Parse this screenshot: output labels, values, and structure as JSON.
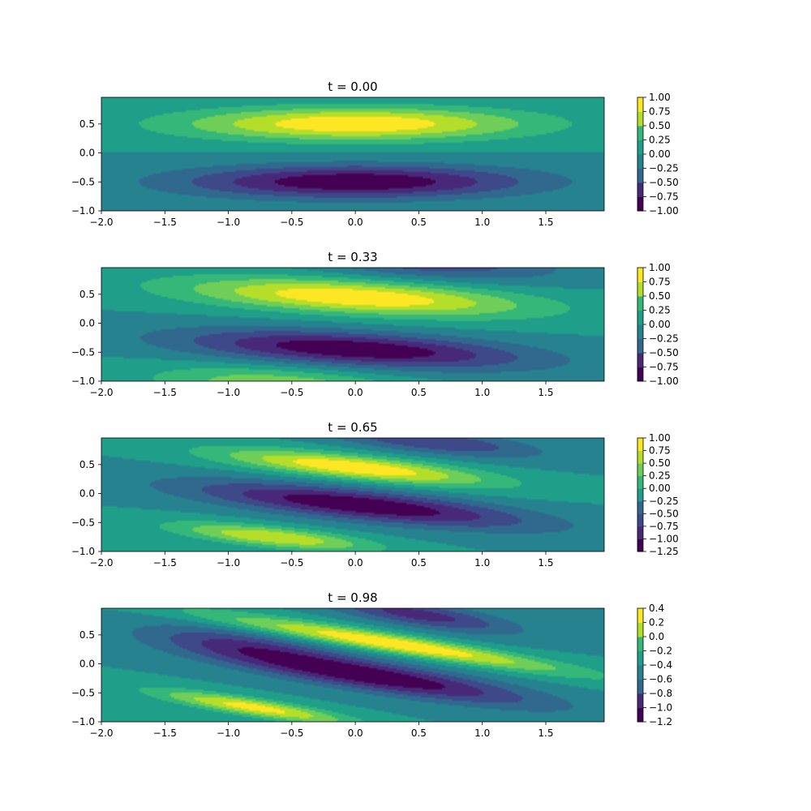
{
  "colormap": [
    "#440154",
    "#482878",
    "#3e4989",
    "#31688e",
    "#26828e",
    "#1f9e89",
    "#35b779",
    "#6ece58",
    "#b5de2b",
    "#fde725"
  ],
  "chart_data": [
    {
      "type": "heatmap",
      "title": "t = 0.00",
      "xlim": [
        -2.0,
        1.96
      ],
      "ylim": [
        -1.0,
        0.96
      ],
      "x_ticks": [
        "-2.0",
        "-1.5",
        "-1.0",
        "-0.5",
        "0.0",
        "0.5",
        "1.0",
        "1.5"
      ],
      "y_ticks": [
        "-1.0",
        "-0.5",
        "0.0",
        "0.5"
      ],
      "colorbar_ticks": [
        "-1.00",
        "-0.75",
        "-0.50",
        "-0.25",
        "0.00",
        "0.25",
        "0.50",
        "0.75",
        "1.00"
      ],
      "field": {
        "lobes": [
          {
            "cx": 0.0,
            "cy": 0.5,
            "sx": 0.95,
            "sy": 0.2,
            "amp": 1.0,
            "angle": 0.0
          },
          {
            "cx": 0.0,
            "cy": -0.5,
            "sx": 0.95,
            "sy": 0.2,
            "amp": -1.0,
            "angle": 0.0
          }
        ]
      }
    },
    {
      "type": "heatmap",
      "title": "t = 0.33",
      "xlim": [
        -2.0,
        1.96
      ],
      "ylim": [
        -1.0,
        0.96
      ],
      "x_ticks": [
        "-2.0",
        "-1.5",
        "-1.0",
        "-0.5",
        "0.0",
        "0.5",
        "1.0",
        "1.5"
      ],
      "y_ticks": [
        "-1.0",
        "-0.5",
        "0.0",
        "0.5"
      ],
      "colorbar_ticks": [
        "-1.00",
        "-0.75",
        "-0.50",
        "-0.25",
        "0.00",
        "0.25",
        "0.50",
        "0.75",
        "1.00"
      ],
      "field": {
        "lobes": [
          {
            "cx": 0.0,
            "cy": 0.45,
            "sx": 0.95,
            "sy": 0.2,
            "amp": 1.0,
            "angle": -0.12
          },
          {
            "cx": 0.0,
            "cy": -0.45,
            "sx": 0.95,
            "sy": 0.2,
            "amp": -1.0,
            "angle": -0.12
          },
          {
            "cx": 0.6,
            "cy": 1.05,
            "sx": 0.7,
            "sy": 0.2,
            "amp": -0.55,
            "angle": -0.12
          },
          {
            "cx": -0.6,
            "cy": -1.05,
            "sx": 0.7,
            "sy": 0.2,
            "amp": 0.55,
            "angle": -0.12
          }
        ]
      }
    },
    {
      "type": "heatmap",
      "title": "t = 0.65",
      "xlim": [
        -2.0,
        1.96
      ],
      "ylim": [
        -1.0,
        0.96
      ],
      "x_ticks": [
        "-2.0",
        "-1.5",
        "-1.0",
        "-0.5",
        "0.0",
        "0.5",
        "1.0",
        "1.5"
      ],
      "y_ticks": [
        "-1.0",
        "-0.5",
        "0.0",
        "0.5"
      ],
      "colorbar_ticks": [
        "-1.25",
        "-1.00",
        "-0.75",
        "-0.50",
        "-0.25",
        "0.00",
        "0.25",
        "0.50",
        "0.75",
        "1.00"
      ],
      "field": {
        "lobes": [
          {
            "cx": 0.0,
            "cy": 0.45,
            "sx": 0.75,
            "sy": 0.14,
            "amp": 1.0,
            "angle": -0.22
          },
          {
            "cx": 0.05,
            "cy": -0.2,
            "sx": 0.95,
            "sy": 0.18,
            "amp": -1.0,
            "angle": -0.22
          },
          {
            "cx": 0.6,
            "cy": 0.9,
            "sx": 0.6,
            "sy": 0.14,
            "amp": -0.6,
            "angle": -0.22
          },
          {
            "cx": -0.65,
            "cy": -0.75,
            "sx": 0.55,
            "sy": 0.12,
            "amp": 0.8,
            "angle": -0.22
          }
        ]
      }
    },
    {
      "type": "heatmap",
      "title": "t = 0.98",
      "xlim": [
        -2.0,
        1.96
      ],
      "ylim": [
        -1.0,
        0.96
      ],
      "x_ticks": [
        "-2.0",
        "-1.5",
        "-1.0",
        "-0.5",
        "0.0",
        "0.5",
        "1.0",
        "1.5"
      ],
      "y_ticks": [
        "-1.0",
        "-0.5",
        "0.0",
        "0.5"
      ],
      "colorbar_ticks": [
        "-1.2",
        "-1.0",
        "-0.8",
        "-0.6",
        "-0.4",
        "-0.2",
        "0.0",
        "0.2",
        "0.4"
      ],
      "field": {
        "lobes": [
          {
            "cx": 0.3,
            "cy": 0.35,
            "sx": 1.0,
            "sy": 0.11,
            "amp": 1.0,
            "angle": -0.33
          },
          {
            "cx": 0.1,
            "cy": -0.2,
            "sx": 0.95,
            "sy": 0.17,
            "amp": -1.0,
            "angle": -0.33
          },
          {
            "cx": -0.8,
            "cy": -0.75,
            "sx": 0.55,
            "sy": 0.1,
            "amp": 0.9,
            "angle": -0.33
          },
          {
            "cx": 0.5,
            "cy": 0.85,
            "sx": 0.55,
            "sy": 0.14,
            "amp": -0.7,
            "angle": -0.33
          },
          {
            "cx": -0.9,
            "cy": 0.35,
            "sx": 0.55,
            "sy": 0.16,
            "amp": -0.45,
            "angle": -0.33
          }
        ]
      }
    }
  ]
}
